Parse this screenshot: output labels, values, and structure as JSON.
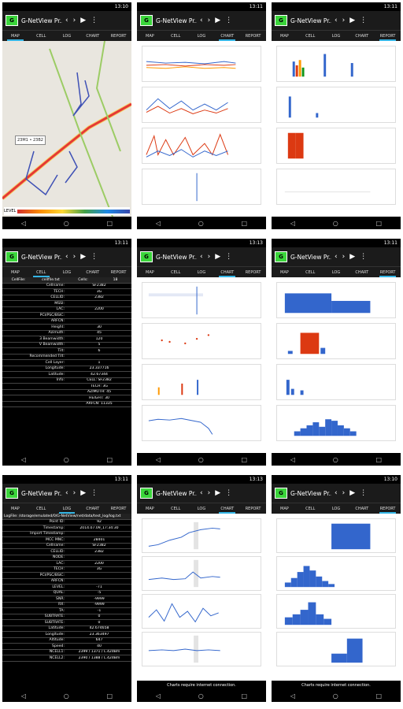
{
  "app": {
    "title": "G-NetView Pr..",
    "logo": "G"
  },
  "status_time": [
    "13:10",
    "13:11",
    "13:11",
    "13:11",
    "13:13",
    "13:11",
    "13:11",
    "13:13",
    "13:10"
  ],
  "tabs": [
    "MAP",
    "CELL",
    "LOG",
    "CHART",
    "REPORT"
  ],
  "active_tab": [
    0,
    3,
    4,
    1,
    3,
    4,
    2,
    3,
    4
  ],
  "map": {
    "tooltip": "23M1 • 23B2",
    "legend_label": "LEVEL"
  },
  "cell": {
    "header": [
      "CellFile:",
      "cellfile.txt",
      "Cells:",
      "18"
    ],
    "rows": [
      [
        "Cellname:",
        "SF2382"
      ],
      [
        "TECH:",
        "3G"
      ],
      [
        "CELLID:",
        "2382"
      ],
      [
        "MSSI:",
        ""
      ],
      [
        "LAC:",
        "2200"
      ],
      [
        "PCI/PSC/BSIC:",
        ""
      ],
      [
        "ARFCN:",
        ""
      ],
      [
        "Height:",
        "30"
      ],
      [
        "Azimuth:",
        "45"
      ],
      [
        "3 Beamwidth:",
        "120"
      ],
      [
        "V Beamwidth:",
        "5"
      ],
      [
        "Tilt:",
        "6"
      ],
      [
        "Recommended Tilt:",
        ""
      ],
      [
        "Cell Layer:",
        "1"
      ],
      [
        "Longitude:",
        "23.337716"
      ],
      [
        "Latitude:",
        "42.67344"
      ],
      [
        "Info:",
        "CELL: SF2382"
      ],
      [
        "",
        "TECH: 3G"
      ],
      [
        "",
        "AZIMUTH: 45"
      ],
      [
        "",
        "HEIGHT: 30"
      ],
      [
        "",
        "ARFCN: 11335"
      ]
    ]
  },
  "log": {
    "path": "LogFile: /storage/emulated/0/G-NetView/net/data/test_log/log.txt",
    "rows": [
      [
        "Point ID:",
        "92"
      ],
      [
        "Timestamp:",
        "2014.07.09_17:34:30"
      ],
      [
        "Import Timestamp:",
        ""
      ],
      [
        "MCC MNC:",
        "28401"
      ],
      [
        "Cellname:",
        "SF2382"
      ],
      [
        "CELLID:",
        "2382"
      ],
      [
        "NODE:",
        ""
      ],
      [
        "LAC:",
        "2200"
      ],
      [
        "TECH:",
        "3G"
      ],
      [
        "PCI/PSC/BSIC:",
        ""
      ],
      [
        "ARFCN:",
        ""
      ],
      [
        "LEVEL:",
        "-71"
      ],
      [
        "QUAL:",
        "-5"
      ],
      [
        "SNR:",
        "-9999"
      ],
      [
        "RX:",
        "-9999"
      ],
      [
        "TA:",
        "-1"
      ],
      [
        "SUBTRATE:",
        "0"
      ],
      [
        "SUBTRATE:",
        "0"
      ],
      [
        "Latitude:",
        "42.674658"
      ],
      [
        "Longitude:",
        "23.363497"
      ],
      [
        "Altitude:",
        "647"
      ],
      [
        "Speed:",
        "40"
      ],
      [
        "NCELL1:",
        "2399 / 1371 / L.42dBm"
      ],
      [
        "NCELL2:",
        "2390 / 1388 / L.42dBm"
      ]
    ]
  },
  "charts_banner": "Charts require internet connection."
}
